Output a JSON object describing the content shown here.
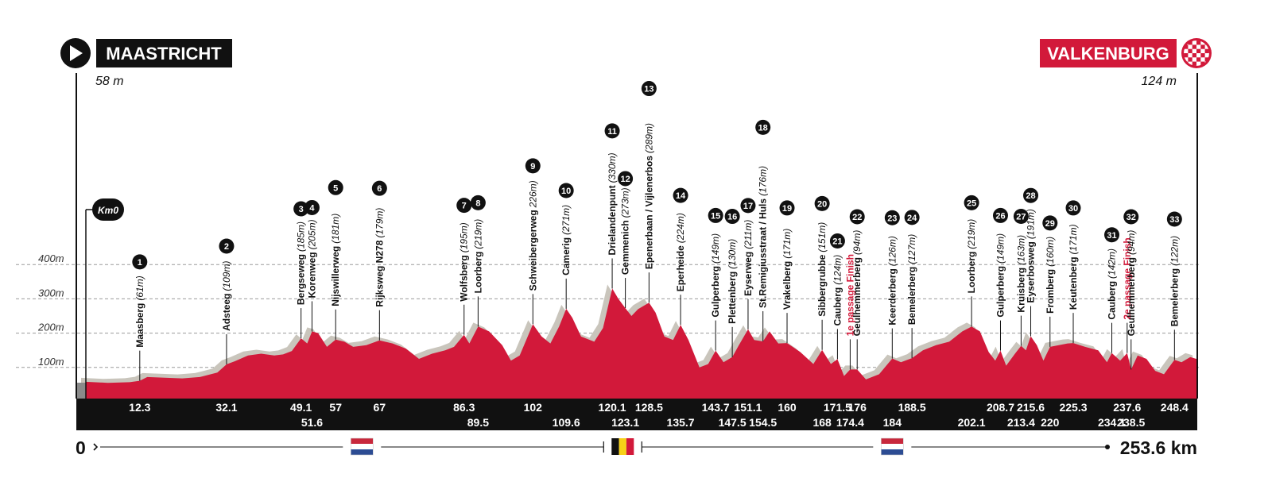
{
  "start": {
    "name": "MAASTRICHT",
    "altitude": "58 m"
  },
  "finish": {
    "name": "VALKENBURG",
    "altitude": "124 m"
  },
  "km0_label": "Km0",
  "distance": {
    "start_label": "0",
    "end_label": "253.6 km",
    "total_km": 253.6
  },
  "colors": {
    "profile_fill": "#d2193a",
    "shadow": "#c9c5bc",
    "band": "#111111",
    "finish_red": "#d2193a"
  },
  "country_flags": [
    {
      "country": "netherlands",
      "km": 63
    },
    {
      "country": "belgium",
      "km": 122.5
    },
    {
      "country": "netherlands",
      "km": 184
    }
  ],
  "chart_data": {
    "type": "area",
    "title": "",
    "xlabel": "",
    "ylabel": "",
    "xlim": [
      0,
      253.6
    ],
    "ylim": [
      0,
      400
    ],
    "yticks": [
      {
        "value": 100,
        "label": "100m"
      },
      {
        "value": 200,
        "label": "200m"
      },
      {
        "value": 300,
        "label": "300m"
      },
      {
        "value": 400,
        "label": "400m"
      }
    ],
    "grid": true,
    "profile": [
      [
        0,
        58
      ],
      [
        5,
        55
      ],
      [
        10,
        57
      ],
      [
        12.3,
        61
      ],
      [
        14,
        72
      ],
      [
        18,
        70
      ],
      [
        22,
        68
      ],
      [
        26,
        72
      ],
      [
        30,
        85
      ],
      [
        32.1,
        109
      ],
      [
        34,
        118
      ],
      [
        37,
        135
      ],
      [
        40,
        140
      ],
      [
        43,
        135
      ],
      [
        45,
        138
      ],
      [
        47,
        148
      ],
      [
        49.1,
        185
      ],
      [
        50.5,
        170
      ],
      [
        51.6,
        205
      ],
      [
        53,
        200
      ],
      [
        55,
        160
      ],
      [
        57,
        181
      ],
      [
        59,
        175
      ],
      [
        61,
        160
      ],
      [
        64,
        165
      ],
      [
        67,
        179
      ],
      [
        70,
        170
      ],
      [
        73,
        155
      ],
      [
        76,
        125
      ],
      [
        79,
        140
      ],
      [
        82,
        150
      ],
      [
        84,
        160
      ],
      [
        86.3,
        195
      ],
      [
        87.5,
        170
      ],
      [
        89.5,
        219
      ],
      [
        92,
        205
      ],
      [
        95,
        165
      ],
      [
        97,
        120
      ],
      [
        99,
        135
      ],
      [
        102,
        226
      ],
      [
        104,
        190
      ],
      [
        106,
        170
      ],
      [
        108,
        220
      ],
      [
        109.6,
        271
      ],
      [
        111,
        245
      ],
      [
        113,
        190
      ],
      [
        116,
        175
      ],
      [
        118,
        215
      ],
      [
        120.1,
        330
      ],
      [
        121.5,
        300
      ],
      [
        123.1,
        273
      ],
      [
        124.5,
        250
      ],
      [
        126,
        270
      ],
      [
        128.5,
        289
      ],
      [
        130,
        260
      ],
      [
        132,
        190
      ],
      [
        134,
        180
      ],
      [
        135.7,
        224
      ],
      [
        137.5,
        180
      ],
      [
        140,
        100
      ],
      [
        142,
        110
      ],
      [
        143.7,
        149
      ],
      [
        145.5,
        115
      ],
      [
        147.5,
        130
      ],
      [
        149,
        165
      ],
      [
        151.1,
        211
      ],
      [
        152.5,
        180
      ],
      [
        154.5,
        176
      ],
      [
        156,
        205
      ],
      [
        158,
        170
      ],
      [
        160,
        171
      ],
      [
        163,
        145
      ],
      [
        166,
        110
      ],
      [
        168,
        151
      ],
      [
        170,
        110
      ],
      [
        171.5,
        124
      ],
      [
        173,
        75
      ],
      [
        174.4,
        94
      ],
      [
        176,
        94
      ],
      [
        178,
        65
      ],
      [
        181,
        80
      ],
      [
        184,
        126
      ],
      [
        186,
        115
      ],
      [
        188.5,
        127
      ],
      [
        191,
        150
      ],
      [
        194,
        165
      ],
      [
        197,
        175
      ],
      [
        200,
        205
      ],
      [
        202.1,
        219
      ],
      [
        204,
        205
      ],
      [
        206,
        145
      ],
      [
        207.5,
        120
      ],
      [
        208.7,
        149
      ],
      [
        210,
        105
      ],
      [
        212,
        140
      ],
      [
        213.4,
        163
      ],
      [
        214.5,
        150
      ],
      [
        215.6,
        191
      ],
      [
        217,
        165
      ],
      [
        218.5,
        120
      ],
      [
        220,
        160
      ],
      [
        222,
        165
      ],
      [
        224,
        170
      ],
      [
        225.3,
        171
      ],
      [
        228,
        160
      ],
      [
        231,
        150
      ],
      [
        233,
        115
      ],
      [
        234.1,
        142
      ],
      [
        236,
        120
      ],
      [
        237.6,
        142
      ],
      [
        238.5,
        94
      ],
      [
        240,
        135
      ],
      [
        242,
        125
      ],
      [
        244,
        90
      ],
      [
        246,
        80
      ],
      [
        248.4,
        122
      ],
      [
        250,
        115
      ],
      [
        252,
        130
      ],
      [
        253.6,
        124
      ]
    ],
    "x_labels": [
      {
        "km": 12.3,
        "label": "12.3",
        "row": 1
      },
      {
        "km": 32.1,
        "label": "32.1",
        "row": 1
      },
      {
        "km": 49.1,
        "label": "49.1",
        "row": 1
      },
      {
        "km": 51.6,
        "label": "51.6",
        "row": 2
      },
      {
        "km": 57,
        "label": "57",
        "row": 1
      },
      {
        "km": 67,
        "label": "67",
        "row": 1
      },
      {
        "km": 86.3,
        "label": "86.3",
        "row": 1
      },
      {
        "km": 89.5,
        "label": "89.5",
        "row": 2
      },
      {
        "km": 102,
        "label": "102",
        "row": 1
      },
      {
        "km": 109.6,
        "label": "109.6",
        "row": 2
      },
      {
        "km": 120.1,
        "label": "120.1",
        "row": 1
      },
      {
        "km": 123.1,
        "label": "123.1",
        "row": 2
      },
      {
        "km": 128.5,
        "label": "128.5",
        "row": 1
      },
      {
        "km": 135.7,
        "label": "135.7",
        "row": 2
      },
      {
        "km": 143.7,
        "label": "143.7",
        "row": 1
      },
      {
        "km": 147.5,
        "label": "147.5",
        "row": 2
      },
      {
        "km": 151.1,
        "label": "151.1",
        "row": 1
      },
      {
        "km": 154.5,
        "label": "154.5",
        "row": 2
      },
      {
        "km": 160,
        "label": "160",
        "row": 1
      },
      {
        "km": 168,
        "label": "168",
        "row": 2
      },
      {
        "km": 171.5,
        "label": "171.5",
        "row": 1
      },
      {
        "km": 174.4,
        "label": "174.4",
        "row": 2
      },
      {
        "km": 176,
        "label": "176",
        "row": 1
      },
      {
        "km": 184,
        "label": "184",
        "row": 2
      },
      {
        "km": 188.5,
        "label": "188.5",
        "row": 1
      },
      {
        "km": 202.1,
        "label": "202.1",
        "row": 2
      },
      {
        "km": 208.7,
        "label": "208.7",
        "row": 1
      },
      {
        "km": 213.4,
        "label": "213.4",
        "row": 2
      },
      {
        "km": 215.6,
        "label": "215.6",
        "row": 1
      },
      {
        "km": 220,
        "label": "220",
        "row": 2
      },
      {
        "km": 225.3,
        "label": "225.3",
        "row": 1
      },
      {
        "km": 234.1,
        "label": "234.1",
        "row": 2
      },
      {
        "km": 237.6,
        "label": "237.6",
        "row": 1
      },
      {
        "km": 238.5,
        "label": "238.5",
        "row": 2
      },
      {
        "km": 248.4,
        "label": "248.4",
        "row": 1
      }
    ],
    "climbs": [
      {
        "number": "1",
        "km": 12.3,
        "name": "Maasberg",
        "height": "(61m)",
        "elevation": 61
      },
      {
        "number": "2",
        "km": 32.1,
        "name": "Adsteeg",
        "height": "(109m)",
        "elevation": 109
      },
      {
        "number": "3",
        "km": 49.1,
        "name": "Bergseweg",
        "height": "(185m)",
        "elevation": 185
      },
      {
        "number": "4",
        "km": 51.6,
        "name": "Korenweg",
        "height": "(205m)",
        "elevation": 205
      },
      {
        "number": "5",
        "km": 57,
        "name": "Nijswillerweg",
        "height": "(181m)",
        "elevation": 181
      },
      {
        "number": "6",
        "km": 67,
        "name": "Rijksweg N278",
        "height": "(179m)",
        "elevation": 179
      },
      {
        "number": "7",
        "km": 86.3,
        "name": "Wolfsberg",
        "height": "(195m)",
        "elevation": 195
      },
      {
        "number": "8",
        "km": 89.5,
        "name": "Loorberg",
        "height": "(219m)",
        "elevation": 219
      },
      {
        "number": "9",
        "km": 102,
        "name": "Schweibergerweg",
        "height": "226m)",
        "elevation": 226
      },
      {
        "number": "10",
        "km": 109.6,
        "name": "Camerig",
        "height": "(271m)",
        "elevation": 271
      },
      {
        "number": "11",
        "km": 120.1,
        "name": "Drielandenpunt",
        "height": "(330m)",
        "elevation": 330
      },
      {
        "number": "12",
        "km": 123.1,
        "name": "Gemmenich",
        "height": "(273m)",
        "elevation": 273
      },
      {
        "number": "13",
        "km": 128.5,
        "name": "Epenerbaan / Vijlenerbos",
        "height": "(289m)",
        "elevation": 289
      },
      {
        "number": "14",
        "km": 135.7,
        "name": "Eperheide",
        "height": "(224m)",
        "elevation": 224
      },
      {
        "number": "15",
        "km": 143.7,
        "name": "Gulperberg",
        "height": "(149m)",
        "elevation": 149
      },
      {
        "number": "16",
        "km": 147.5,
        "name": "Plettenberg",
        "height": "(130m)",
        "elevation": 130
      },
      {
        "number": "17",
        "km": 151.1,
        "name": "Eyserweg",
        "height": "(211m)",
        "elevation": 211
      },
      {
        "number": "18",
        "km": 154.5,
        "name": "St.Remigiusstraat / Huls",
        "height": "(176m)",
        "elevation": 176
      },
      {
        "number": "19",
        "km": 160,
        "name": "Vrakelberg",
        "height": "(171m)",
        "elevation": 171
      },
      {
        "number": "20",
        "km": 168,
        "name": "Sibbergrubbe",
        "height": "(151m)",
        "elevation": 151
      },
      {
        "number": "21",
        "km": 171.5,
        "name": "Cauberg",
        "height": "(124m)",
        "elevation": 124
      },
      {
        "number": "",
        "km": 174.4,
        "name": "1e passage Finish",
        "height": "",
        "elevation": 94,
        "red": true
      },
      {
        "number": "22",
        "km": 176,
        "name": "Geulhemmerberg",
        "height": "(94m)",
        "elevation": 94
      },
      {
        "number": "23",
        "km": 184,
        "name": "Keerderberg",
        "height": "(126m)",
        "elevation": 126
      },
      {
        "number": "24",
        "km": 188.5,
        "name": "Bemelerberg",
        "height": "(127m)",
        "elevation": 127
      },
      {
        "number": "25",
        "km": 202.1,
        "name": "Loorberg",
        "height": "(219m)",
        "elevation": 219
      },
      {
        "number": "26",
        "km": 208.7,
        "name": "Gulperberg",
        "height": "(149m)",
        "elevation": 149
      },
      {
        "number": "27",
        "km": 213.4,
        "name": "Kruisberg",
        "height": "(163m)",
        "elevation": 163
      },
      {
        "number": "28",
        "km": 215.6,
        "name": "Eyserbosweg",
        "height": "(191m)",
        "elevation": 191
      },
      {
        "number": "29",
        "km": 220,
        "name": "Fromberg",
        "height": "(160m)",
        "elevation": 160
      },
      {
        "number": "30",
        "km": 225.3,
        "name": "Keutenberg",
        "height": "(171m)",
        "elevation": 171
      },
      {
        "number": "31",
        "km": 234.1,
        "name": "Cauberg",
        "height": "(142m)",
        "elevation": 142
      },
      {
        "number": "",
        "km": 237.6,
        "name": "2e passage Finish",
        "height": "",
        "elevation": 142,
        "red": true
      },
      {
        "number": "32",
        "km": 238.5,
        "name": "Geulhemmerberg",
        "height": "(94m)",
        "elevation": 94
      },
      {
        "number": "33",
        "km": 248.4,
        "name": "Bemelerberg",
        "height": "(122m)",
        "elevation": 122
      }
    ]
  }
}
